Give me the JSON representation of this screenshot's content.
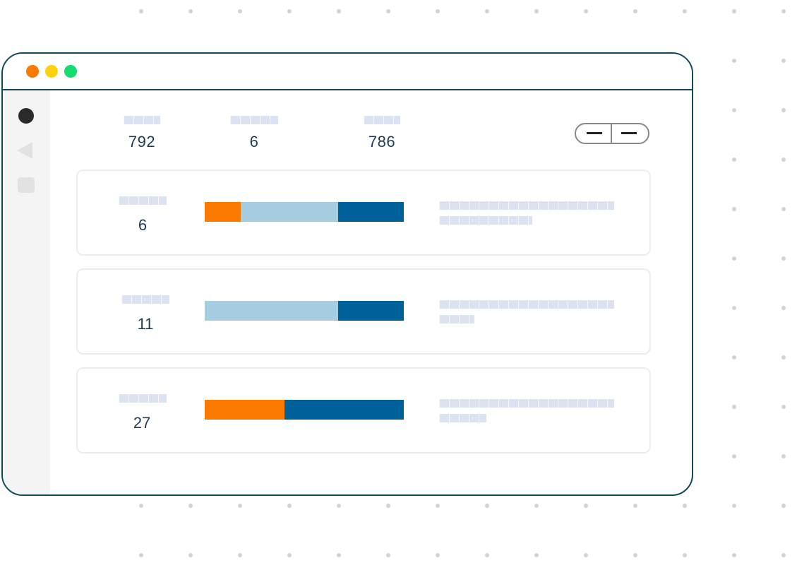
{
  "colors": {
    "window_border": "#0d4a5c",
    "traffic_red": "#fd7a00",
    "traffic_yellow": "#fdd208",
    "traffic_green": "#14dd6d",
    "orange": "#fd7a00",
    "light_blue": "#a7cde1",
    "dark_blue": "#00629a",
    "text": "#1d3b57"
  },
  "window": {
    "traffic_lights": [
      "close",
      "minimize",
      "maximize"
    ]
  },
  "sidebar": {
    "items": [
      {
        "icon": "circle-icon"
      },
      {
        "icon": "back-arrow-icon"
      },
      {
        "icon": "square-icon"
      }
    ]
  },
  "summary": {
    "stats": [
      {
        "value": "792"
      },
      {
        "value": "6"
      },
      {
        "value": "786"
      }
    ]
  },
  "toggle": {
    "segments": [
      "minus-icon",
      "minus-icon"
    ]
  },
  "rows": [
    {
      "count": "6",
      "bar_fractions": {
        "orange": 0.18,
        "light_blue": 0.49,
        "dark_blue": 0.33
      }
    },
    {
      "count": "11",
      "bar_fractions": {
        "orange": 0.0,
        "light_blue": 0.67,
        "dark_blue": 0.33
      }
    },
    {
      "count": "27",
      "bar_fractions": {
        "orange": 0.4,
        "light_blue": 0.0,
        "dark_blue": 0.6
      }
    }
  ]
}
